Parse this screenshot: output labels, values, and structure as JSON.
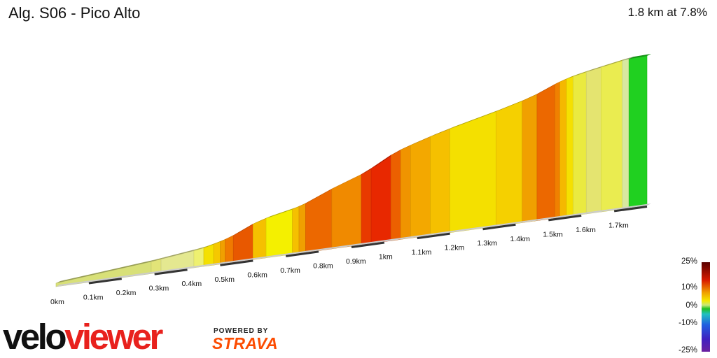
{
  "header": {
    "title": "Alg. S06 - Pico Alto",
    "stats": "1.8 km at 7.8%"
  },
  "legend": {
    "labels": [
      "25%",
      "10%",
      "0%",
      "-10%",
      "-25%"
    ]
  },
  "branding": {
    "logo_part1": "velo",
    "logo_part2": "viewer",
    "powered_by": "POWERED BY",
    "strava": "STRAVA"
  },
  "chart_data": {
    "type": "area",
    "title": "Alg. S06 - Pico Alto",
    "distance_km": 1.8,
    "avg_gradient_pct": 7.8,
    "xlim": [
      0,
      1.8
    ],
    "x_ticks": [
      "0km",
      "0.1km",
      "0.2km",
      "0.3km",
      "0.4km",
      "0.5km",
      "0.6km",
      "0.7km",
      "0.8km",
      "0.9km",
      "1km",
      "1.1km",
      "1.2km",
      "1.3km",
      "1.4km",
      "1.5km",
      "1.6km",
      "1.7km"
    ],
    "colors": {
      "yellow_green": "#d8e078",
      "yellow": "#f2f000",
      "amber": "#f5c000",
      "orange": "#f08a00",
      "dark_orange": "#e85800",
      "red": "#e82800",
      "green": "#20d020"
    },
    "segments": [
      {
        "start": 0.0,
        "end": 0.29,
        "gradient": 3,
        "color": "#d8e078"
      },
      {
        "start": 0.29,
        "end": 0.32,
        "gradient": 4,
        "color": "#e2e478"
      },
      {
        "start": 0.32,
        "end": 0.42,
        "gradient": 4,
        "color": "#e4e890"
      },
      {
        "start": 0.42,
        "end": 0.45,
        "gradient": 5,
        "color": "#eef070"
      },
      {
        "start": 0.45,
        "end": 0.48,
        "gradient": 8,
        "color": "#f4e000"
      },
      {
        "start": 0.48,
        "end": 0.5,
        "gradient": 9,
        "color": "#f5c800"
      },
      {
        "start": 0.5,
        "end": 0.515,
        "gradient": 10,
        "color": "#f0a000"
      },
      {
        "start": 0.515,
        "end": 0.54,
        "gradient": 12,
        "color": "#f07a00"
      },
      {
        "start": 0.54,
        "end": 0.6,
        "gradient": 15,
        "color": "#e85800"
      },
      {
        "start": 0.6,
        "end": 0.64,
        "gradient": 10,
        "color": "#f5c000"
      },
      {
        "start": 0.64,
        "end": 0.72,
        "gradient": 7,
        "color": "#f4f000"
      },
      {
        "start": 0.72,
        "end": 0.74,
        "gradient": 10,
        "color": "#f5c000"
      },
      {
        "start": 0.74,
        "end": 0.76,
        "gradient": 11,
        "color": "#f0a000"
      },
      {
        "start": 0.76,
        "end": 0.84,
        "gradient": 14,
        "color": "#ec6800"
      },
      {
        "start": 0.84,
        "end": 0.93,
        "gradient": 12,
        "color": "#f08a00"
      },
      {
        "start": 0.93,
        "end": 0.96,
        "gradient": 16,
        "color": "#e83a00"
      },
      {
        "start": 0.96,
        "end": 1.02,
        "gradient": 18,
        "color": "#e82800"
      },
      {
        "start": 1.02,
        "end": 1.05,
        "gradient": 14,
        "color": "#ec6000"
      },
      {
        "start": 1.05,
        "end": 1.08,
        "gradient": 11,
        "color": "#f09400"
      },
      {
        "start": 1.08,
        "end": 1.14,
        "gradient": 10,
        "color": "#f3a800"
      },
      {
        "start": 1.14,
        "end": 1.2,
        "gradient": 9,
        "color": "#f5c000"
      },
      {
        "start": 1.2,
        "end": 1.34,
        "gradient": 8,
        "color": "#f4e000"
      },
      {
        "start": 1.34,
        "end": 1.42,
        "gradient": 9,
        "color": "#f5d000"
      },
      {
        "start": 1.42,
        "end": 1.465,
        "gradient": 11,
        "color": "#f0a000"
      },
      {
        "start": 1.465,
        "end": 1.52,
        "gradient": 14,
        "color": "#ec6800"
      },
      {
        "start": 1.52,
        "end": 1.535,
        "gradient": 12,
        "color": "#f08000"
      },
      {
        "start": 1.535,
        "end": 1.555,
        "gradient": 10,
        "color": "#f5b800"
      },
      {
        "start": 1.555,
        "end": 1.575,
        "gradient": 8,
        "color": "#f5e000"
      },
      {
        "start": 1.575,
        "end": 1.615,
        "gradient": 7,
        "color": "#eaea40"
      },
      {
        "start": 1.615,
        "end": 1.66,
        "gradient": 6,
        "color": "#e4e470"
      },
      {
        "start": 1.66,
        "end": 1.725,
        "gradient": 6,
        "color": "#eaec50"
      },
      {
        "start": 1.725,
        "end": 1.745,
        "gradient": 4,
        "color": "#d8e8a0"
      },
      {
        "start": 1.745,
        "end": 1.8,
        "gradient": 1,
        "color": "#20d020"
      }
    ]
  }
}
